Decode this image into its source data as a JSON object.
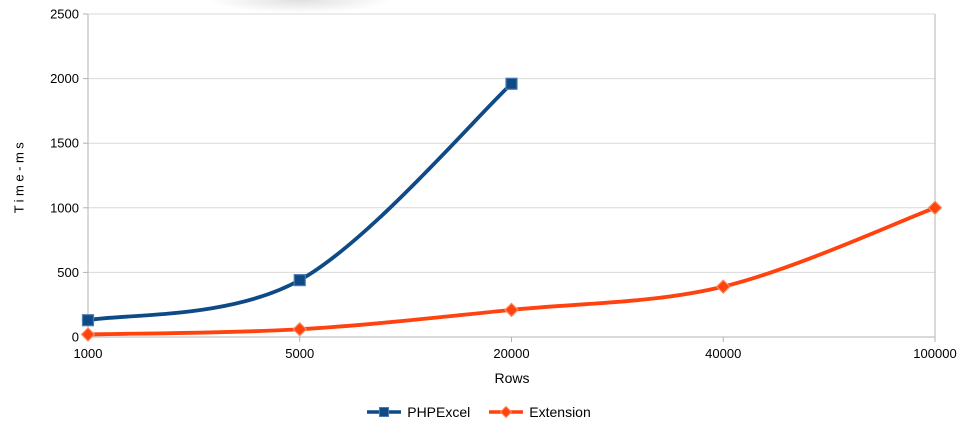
{
  "window": {
    "background": "#ffffff"
  },
  "colors": {
    "axis_line": "#b3b3b3",
    "gridline": "#d9d9d9",
    "tick_text": "#000000",
    "phpexcel_blue": "#0e4a85",
    "extension_orange": "#ff420e"
  },
  "chart_data": {
    "type": "line",
    "title": "",
    "xlabel": "Rows",
    "ylabel": "Time-ms",
    "categories": [
      "1000",
      "5000",
      "20000",
      "40000",
      "100000"
    ],
    "ylim": [
      0,
      2500
    ],
    "y_ticks": [
      0,
      500,
      1000,
      1500,
      2000,
      2500
    ],
    "grid": true,
    "legend_position": "bottom",
    "line_style": "smooth",
    "series": [
      {
        "name": "PHPExcel",
        "color": "#0e4a85",
        "marker": "square",
        "marker_border": "#4d7bb0",
        "values": [
          130,
          440,
          1960,
          null,
          null
        ]
      },
      {
        "name": "Extension",
        "color": "#ff420e",
        "marker": "diamond",
        "marker_border": "#ff8a5f",
        "values": [
          20,
          60,
          210,
          390,
          1000
        ]
      }
    ]
  }
}
